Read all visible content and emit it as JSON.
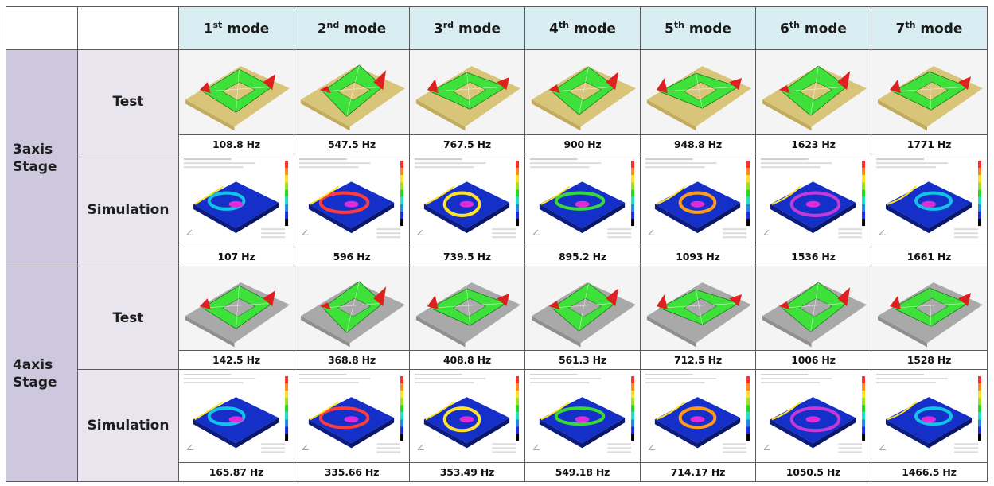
{
  "modes": [
    {
      "num": "1",
      "sup": "st",
      "word": " mode"
    },
    {
      "num": "2",
      "sup": "nd",
      "word": " mode"
    },
    {
      "num": "3",
      "sup": "rd",
      "word": " mode"
    },
    {
      "num": "4",
      "sup": "th",
      "word": " mode"
    },
    {
      "num": "5",
      "sup": "th",
      "word": " mode"
    },
    {
      "num": "6",
      "sup": "th",
      "word": " mode"
    },
    {
      "num": "7",
      "sup": "th",
      "word": " mode"
    }
  ],
  "stages": [
    {
      "name_line1": "3axis",
      "name_line2": "Stage",
      "rows": [
        {
          "label": "Test",
          "image_kind": "test-3axis",
          "freqs": [
            "108.8 Hz",
            "547.5 Hz",
            "767.5 Hz",
            "900 Hz",
            "948.8 Hz",
            "1623 Hz",
            "1771 Hz"
          ]
        },
        {
          "label": "Simulation",
          "image_kind": "sim",
          "freqs": [
            "107 Hz",
            "596 Hz",
            "739.5 Hz",
            "895.2 Hz",
            "1093 Hz",
            "1536 Hz",
            "1661 Hz"
          ]
        }
      ]
    },
    {
      "name_line1": "4axis",
      "name_line2": "Stage",
      "rows": [
        {
          "label": "Test",
          "image_kind": "test-4axis",
          "freqs": [
            "142.5 Hz",
            "368.8 Hz",
            "408.8 Hz",
            "561.3 Hz",
            "712.5 Hz",
            "1006 Hz",
            "1528 Hz"
          ]
        },
        {
          "label": "Simulation",
          "image_kind": "sim",
          "freqs": [
            "165.87  Hz",
            "335.66 Hz",
            "353.49 Hz",
            "549.18 Hz",
            "714.17 Hz",
            "1050.5 Hz",
            "1466.5 Hz"
          ]
        }
      ]
    }
  ],
  "colors": {
    "header_bg": "#d8eef2",
    "stage_bg": "#cdc8dd",
    "row_label_bg": "#e8e5ef",
    "mesh_green": "#3ee03a",
    "mesh_red": "#e02020",
    "sim_blue": "#1530c8"
  }
}
